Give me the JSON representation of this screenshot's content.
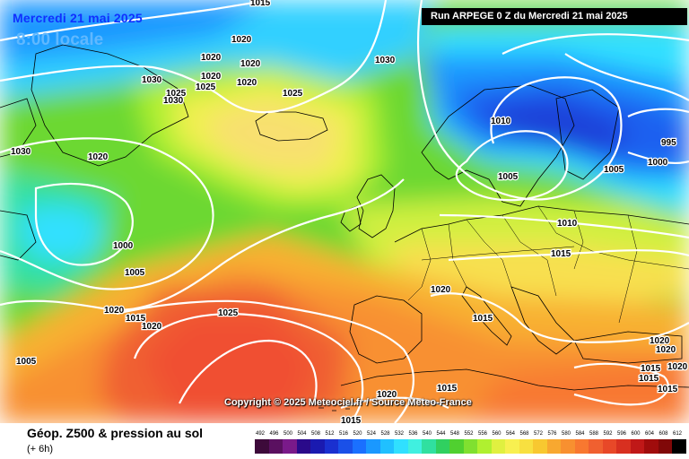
{
  "header": {
    "date": "Mercredi 21 mai 2025",
    "time": "8:00 locale",
    "run": "Run ARPEGE 0 Z du Mercredi 21 mai 2025"
  },
  "copyright": "Copyright © 2025 Meteociel.fr / Source Meteo-France",
  "legend": {
    "title": "Géop. Z500 & pression au sol",
    "subtitle": "(+ 6h)",
    "scale_values": [
      "492",
      "496",
      "500",
      "504",
      "508",
      "512",
      "516",
      "520",
      "524",
      "528",
      "532",
      "536",
      "540",
      "544",
      "548",
      "552",
      "556",
      "560",
      "564",
      "568",
      "572",
      "576",
      "580",
      "584",
      "588",
      "592",
      "596",
      "600",
      "604",
      "608",
      "612"
    ],
    "scale_colors": [
      "#3d0a3a",
      "#5a1060",
      "#7a1a8a",
      "#2a0a8a",
      "#1a1ab0",
      "#1a30d0",
      "#1a50e8",
      "#1a70ff",
      "#1a98ff",
      "#20c0ff",
      "#30e0ff",
      "#40f0e0",
      "#30e0a0",
      "#30d060",
      "#50d030",
      "#80e030",
      "#b0f030",
      "#e0f040",
      "#f8f050",
      "#f8e040",
      "#f8c830",
      "#f8a830",
      "#f89030",
      "#f87830",
      "#f06030",
      "#e84828",
      "#d83020",
      "#c01818",
      "#a00c0c",
      "#800808",
      "#000000"
    ]
  },
  "isobar_labels": [
    "1015",
    "1020",
    "1020",
    "1030",
    "1020",
    "1020",
    "1030",
    "1025",
    "1025",
    "1020",
    "1030",
    "1030",
    "1025",
    "1010",
    "995",
    "1000",
    "1020",
    "1005",
    "1005",
    "1000",
    "1005",
    "1010",
    "1015",
    "1015",
    "1020",
    "1020",
    "1020",
    "1025",
    "1015",
    "1005",
    "1015",
    "1020",
    "1020",
    "1015",
    "1015",
    "1015",
    "1020",
    "1015",
    "1020"
  ],
  "colors": {
    "title": "#1030ff",
    "time": "#60b8ff",
    "isobar": "#ffffff",
    "coast": "#000000"
  }
}
